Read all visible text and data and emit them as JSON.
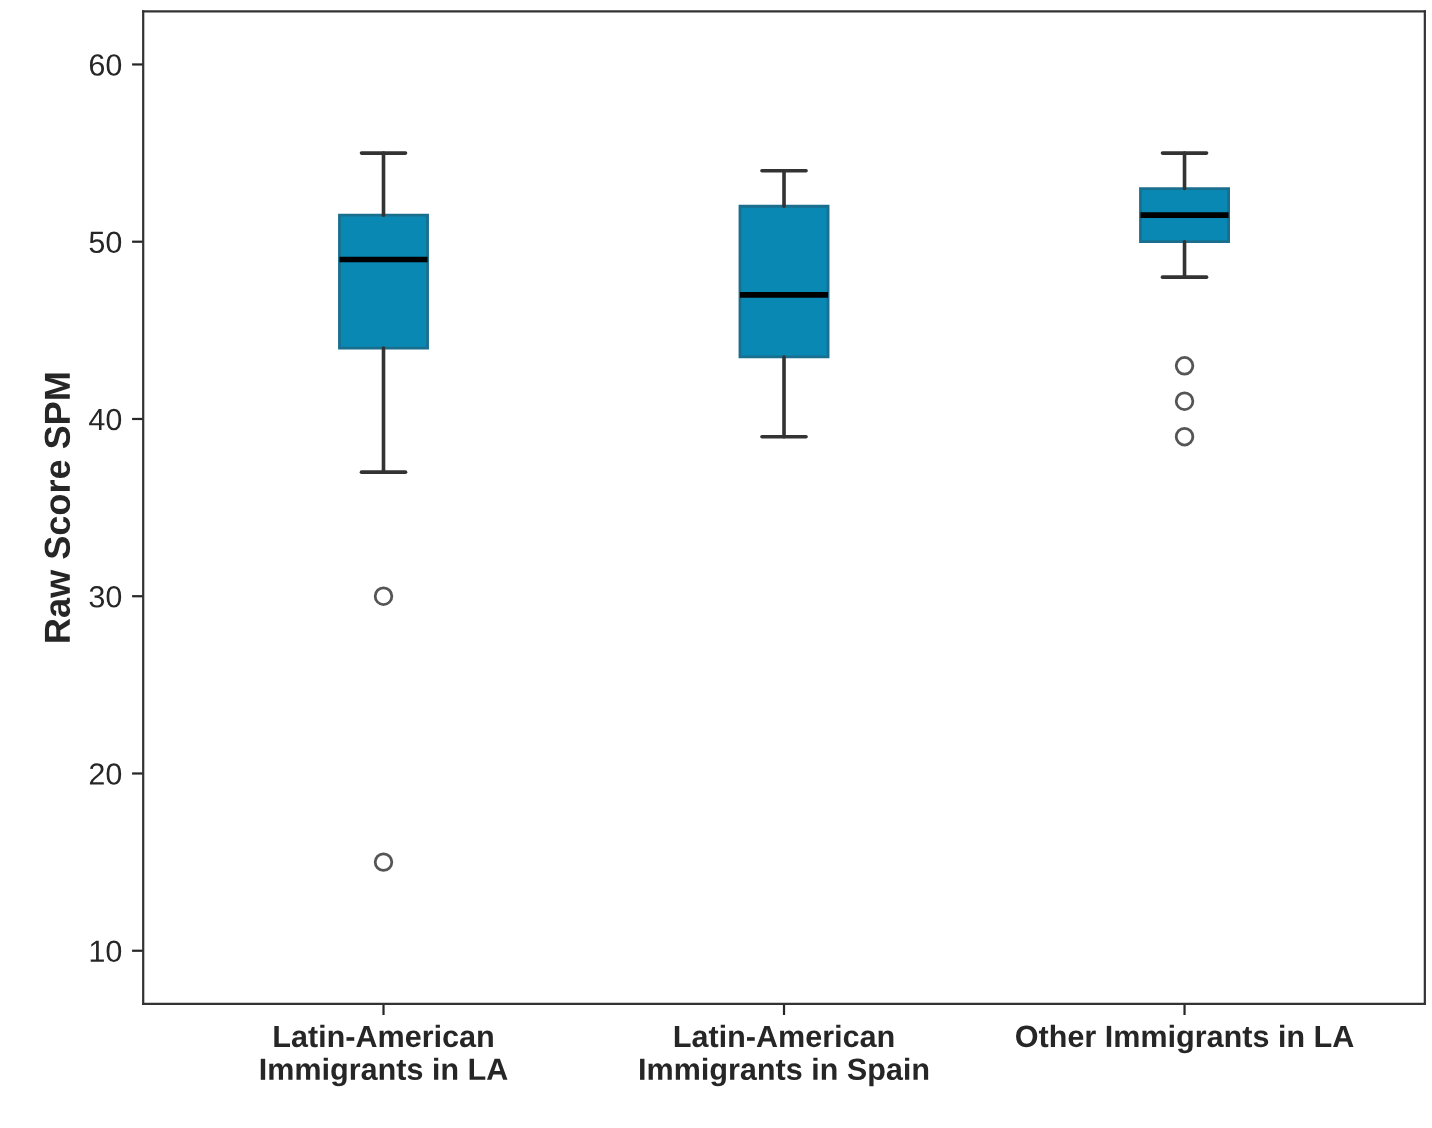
{
  "chart_data": {
    "type": "box",
    "ylabel": "Raw Score SPM",
    "categories": [
      "Latin-American\nImmigrants in LA",
      "Latin-American\nImmigrants in Spain",
      "Other Immigrants in LA"
    ],
    "color": "#0a88b4",
    "boxes": [
      {
        "low": 37,
        "q1": 44,
        "median": 49,
        "q3": 51.5,
        "high": 55,
        "outliers": [
          30,
          15
        ]
      },
      {
        "low": 39,
        "q1": 43.5,
        "median": 47,
        "q3": 52,
        "high": 54
      },
      {
        "low": 48,
        "q1": 50,
        "median": 51.5,
        "q3": 53,
        "high": 55,
        "outliers": [
          43,
          41,
          39
        ]
      }
    ],
    "ylim": [
      7,
      63
    ],
    "yticks": [
      10,
      20,
      30,
      40,
      50,
      60
    ],
    "grid": false
  }
}
